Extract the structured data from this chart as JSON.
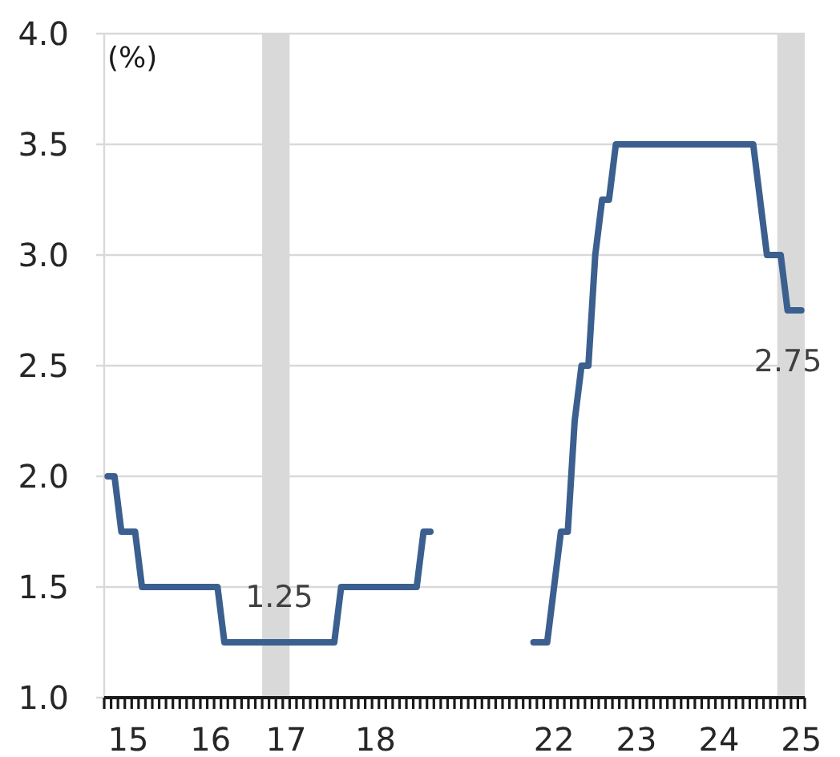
{
  "chart_data": {
    "type": "line",
    "ylabel": "(%)",
    "categories": [
      null,
      null,
      null,
      "15",
      null,
      null,
      null,
      null,
      null,
      null,
      null,
      null,
      null,
      null,
      null,
      "16",
      null,
      null,
      null,
      null,
      null,
      null,
      null,
      null,
      null,
      null,
      "17",
      null,
      null,
      null,
      null,
      null,
      null,
      null,
      null,
      null,
      null,
      null,
      null,
      "18",
      null,
      null,
      null,
      null,
      null,
      null,
      null,
      null,
      null,
      null,
      null,
      null,
      null,
      null,
      null,
      null,
      null,
      null,
      null,
      null,
      null,
      null,
      null,
      null,
      null,
      "22",
      null,
      null,
      null,
      null,
      null,
      null,
      null,
      null,
      null,
      null,
      null,
      "23",
      null,
      null,
      null,
      null,
      null,
      null,
      null,
      null,
      null,
      null,
      null,
      "24",
      null,
      null,
      null,
      null,
      null,
      null,
      null,
      null,
      null,
      null,
      null,
      "25"
    ],
    "values": [
      2,
      2,
      1.75,
      1.75,
      1.75,
      1.5,
      1.5,
      1.5,
      1.5,
      1.5,
      1.5,
      1.5,
      1.5,
      1.5,
      1.5,
      1.5,
      1.5,
      1.25,
      1.25,
      1.25,
      1.25,
      1.25,
      1.25,
      1.25,
      1.25,
      1.25,
      1.25,
      1.25,
      1.25,
      1.25,
      1.25,
      1.25,
      1.25,
      1.25,
      1.5,
      1.5,
      1.5,
      1.5,
      1.5,
      1.5,
      1.5,
      1.5,
      1.5,
      1.5,
      1.5,
      1.5,
      1.75,
      1.75,
      null,
      null,
      null,
      null,
      null,
      null,
      null,
      null,
      null,
      null,
      null,
      null,
      null,
      null,
      1.25,
      1.25,
      1.25,
      1.5,
      1.75,
      1.75,
      2.25,
      2.5,
      2.5,
      3,
      3.25,
      3.25,
      3.5,
      3.5,
      3.5,
      3.5,
      3.5,
      3.5,
      3.5,
      3.5,
      3.5,
      3.5,
      3.5,
      3.5,
      3.5,
      3.5,
      3.5,
      3.5,
      3.5,
      3.5,
      3.5,
      3.5,
      3.5,
      3.25,
      3,
      3,
      3,
      2.75,
      2.75,
      2.75
    ],
    "color": "#3b5f8f",
    "ylim": [
      1,
      4
    ],
    "yticks": [
      {
        "value": 1,
        "label": "1.0"
      },
      {
        "value": 1.5,
        "label": "1.5"
      },
      {
        "value": 2,
        "label": "2.0"
      },
      {
        "value": 2.5,
        "label": "2.5"
      },
      {
        "value": 3,
        "label": "3.0"
      },
      {
        "value": 3.5,
        "label": "3.5"
      },
      {
        "value": 4,
        "label": "4.0"
      }
    ],
    "grid": "y",
    "annotations": [
      {
        "text": "1.25",
        "y": 1.25
      },
      {
        "text": "2.75",
        "y": 2.75
      }
    ]
  }
}
